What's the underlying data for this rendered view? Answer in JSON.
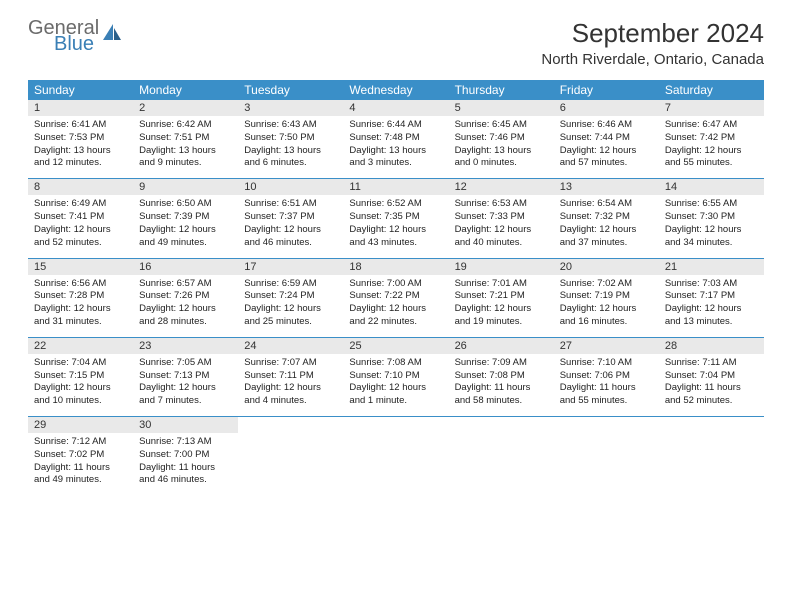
{
  "logo": {
    "general": "General",
    "blue": "Blue"
  },
  "title": "September 2024",
  "location": "North Riverdale, Ontario, Canada",
  "colors": {
    "header_bg": "#3a8fc8",
    "header_text": "#ffffff",
    "daynum_bg": "#e9e9e9",
    "text": "#222222",
    "border": "#3a8fc8",
    "logo_gray": "#6b6b6b",
    "logo_blue": "#3a7fb5"
  },
  "daynames": [
    "Sunday",
    "Monday",
    "Tuesday",
    "Wednesday",
    "Thursday",
    "Friday",
    "Saturday"
  ],
  "weeks": [
    [
      {
        "n": "1",
        "sunrise": "6:41 AM",
        "sunset": "7:53 PM",
        "daylight": "13 hours and 12 minutes."
      },
      {
        "n": "2",
        "sunrise": "6:42 AM",
        "sunset": "7:51 PM",
        "daylight": "13 hours and 9 minutes."
      },
      {
        "n": "3",
        "sunrise": "6:43 AM",
        "sunset": "7:50 PM",
        "daylight": "13 hours and 6 minutes."
      },
      {
        "n": "4",
        "sunrise": "6:44 AM",
        "sunset": "7:48 PM",
        "daylight": "13 hours and 3 minutes."
      },
      {
        "n": "5",
        "sunrise": "6:45 AM",
        "sunset": "7:46 PM",
        "daylight": "13 hours and 0 minutes."
      },
      {
        "n": "6",
        "sunrise": "6:46 AM",
        "sunset": "7:44 PM",
        "daylight": "12 hours and 57 minutes."
      },
      {
        "n": "7",
        "sunrise": "6:47 AM",
        "sunset": "7:42 PM",
        "daylight": "12 hours and 55 minutes."
      }
    ],
    [
      {
        "n": "8",
        "sunrise": "6:49 AM",
        "sunset": "7:41 PM",
        "daylight": "12 hours and 52 minutes."
      },
      {
        "n": "9",
        "sunrise": "6:50 AM",
        "sunset": "7:39 PM",
        "daylight": "12 hours and 49 minutes."
      },
      {
        "n": "10",
        "sunrise": "6:51 AM",
        "sunset": "7:37 PM",
        "daylight": "12 hours and 46 minutes."
      },
      {
        "n": "11",
        "sunrise": "6:52 AM",
        "sunset": "7:35 PM",
        "daylight": "12 hours and 43 minutes."
      },
      {
        "n": "12",
        "sunrise": "6:53 AM",
        "sunset": "7:33 PM",
        "daylight": "12 hours and 40 minutes."
      },
      {
        "n": "13",
        "sunrise": "6:54 AM",
        "sunset": "7:32 PM",
        "daylight": "12 hours and 37 minutes."
      },
      {
        "n": "14",
        "sunrise": "6:55 AM",
        "sunset": "7:30 PM",
        "daylight": "12 hours and 34 minutes."
      }
    ],
    [
      {
        "n": "15",
        "sunrise": "6:56 AM",
        "sunset": "7:28 PM",
        "daylight": "12 hours and 31 minutes."
      },
      {
        "n": "16",
        "sunrise": "6:57 AM",
        "sunset": "7:26 PM",
        "daylight": "12 hours and 28 minutes."
      },
      {
        "n": "17",
        "sunrise": "6:59 AM",
        "sunset": "7:24 PM",
        "daylight": "12 hours and 25 minutes."
      },
      {
        "n": "18",
        "sunrise": "7:00 AM",
        "sunset": "7:22 PM",
        "daylight": "12 hours and 22 minutes."
      },
      {
        "n": "19",
        "sunrise": "7:01 AM",
        "sunset": "7:21 PM",
        "daylight": "12 hours and 19 minutes."
      },
      {
        "n": "20",
        "sunrise": "7:02 AM",
        "sunset": "7:19 PM",
        "daylight": "12 hours and 16 minutes."
      },
      {
        "n": "21",
        "sunrise": "7:03 AM",
        "sunset": "7:17 PM",
        "daylight": "12 hours and 13 minutes."
      }
    ],
    [
      {
        "n": "22",
        "sunrise": "7:04 AM",
        "sunset": "7:15 PM",
        "daylight": "12 hours and 10 minutes."
      },
      {
        "n": "23",
        "sunrise": "7:05 AM",
        "sunset": "7:13 PM",
        "daylight": "12 hours and 7 minutes."
      },
      {
        "n": "24",
        "sunrise": "7:07 AM",
        "sunset": "7:11 PM",
        "daylight": "12 hours and 4 minutes."
      },
      {
        "n": "25",
        "sunrise": "7:08 AM",
        "sunset": "7:10 PM",
        "daylight": "12 hours and 1 minute."
      },
      {
        "n": "26",
        "sunrise": "7:09 AM",
        "sunset": "7:08 PM",
        "daylight": "11 hours and 58 minutes."
      },
      {
        "n": "27",
        "sunrise": "7:10 AM",
        "sunset": "7:06 PM",
        "daylight": "11 hours and 55 minutes."
      },
      {
        "n": "28",
        "sunrise": "7:11 AM",
        "sunset": "7:04 PM",
        "daylight": "11 hours and 52 minutes."
      }
    ],
    [
      {
        "n": "29",
        "sunrise": "7:12 AM",
        "sunset": "7:02 PM",
        "daylight": "11 hours and 49 minutes."
      },
      {
        "n": "30",
        "sunrise": "7:13 AM",
        "sunset": "7:00 PM",
        "daylight": "11 hours and 46 minutes."
      },
      null,
      null,
      null,
      null,
      null
    ]
  ],
  "labels": {
    "sunrise": "Sunrise:",
    "sunset": "Sunset:",
    "daylight": "Daylight:"
  }
}
